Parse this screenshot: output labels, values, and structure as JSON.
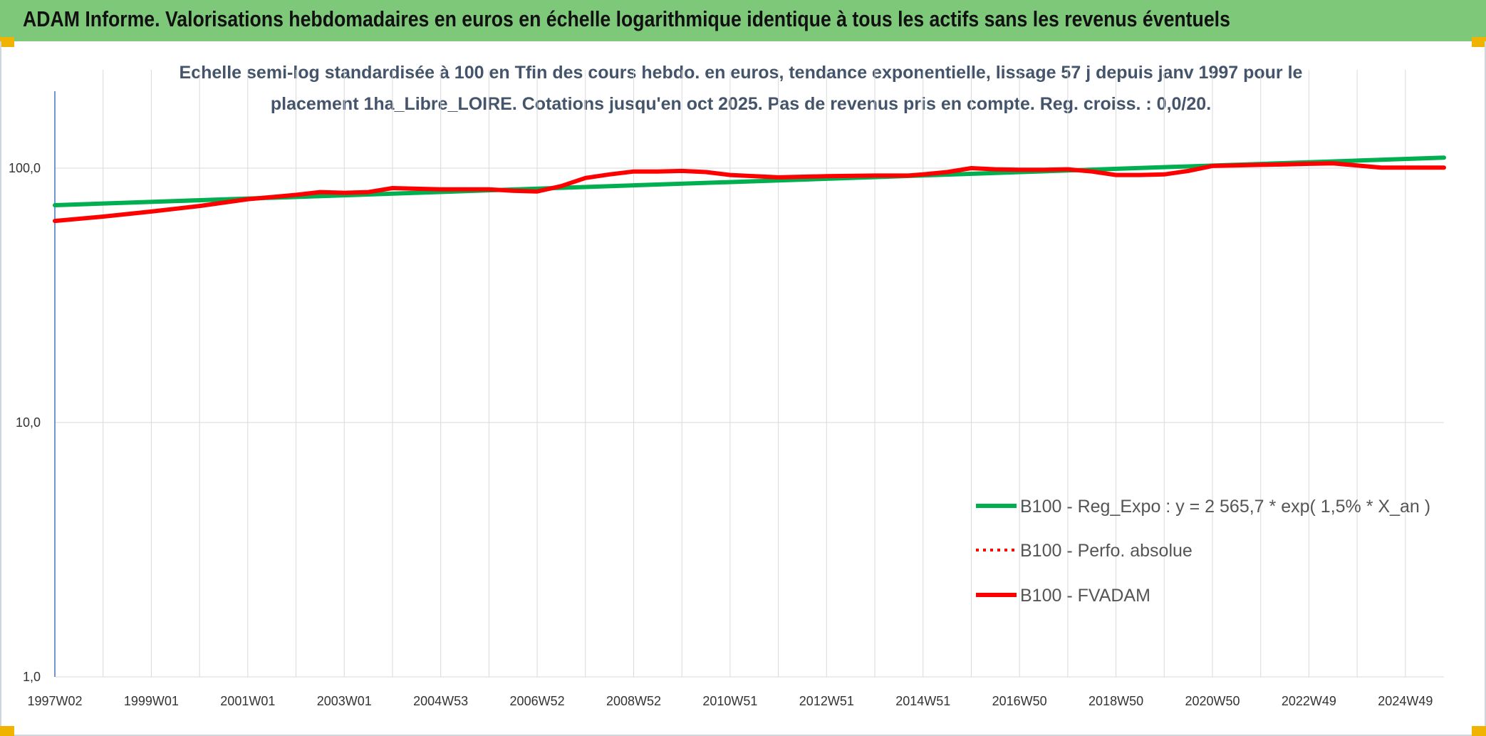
{
  "header": {
    "title": "ADAM Informe. Valorisations hebdomadaires en euros en échelle logarithmique identique à tous les actifs sans les revenus éventuels"
  },
  "colors": {
    "banner": "#7ec87a",
    "trend": "#00b050",
    "series": "#ff0000",
    "grid": "#d9d9d9",
    "axis": "#4472c4"
  },
  "chart_data": {
    "type": "line",
    "title": "Echelle semi-log standardisée à 100 en Tfin des cours hebdo. en euros, tendance exponentielle, lissage 57 j depuis janv 1997 pour le",
    "subtitle": "placement 1ha_Libre_LOIRE. Cotations jusqu'en oct 2025. Pas de revenus pris en compte. Reg. croiss. : 0,0/20.",
    "y_scale": "log",
    "ylim": [
      1,
      200
    ],
    "y_ticks": [
      1,
      10,
      100
    ],
    "y_tick_labels": [
      "1,0",
      "10,0",
      "100,0"
    ],
    "xlim": [
      1997.0,
      2025.8
    ],
    "x_ticks": [
      1997.0,
      1999.0,
      2001.0,
      2003.0,
      2005.0,
      2007.0,
      2009.0,
      2011.0,
      2013.0,
      2015.0,
      2017.0,
      2019.0,
      2021.0,
      2023.0,
      2025.0
    ],
    "x_tick_labels": [
      "1997W02",
      "1999W01",
      "2001W01",
      "2003W01",
      "2004W53",
      "2006W52",
      "2008W52",
      "2010W51",
      "2012W51",
      "2014W51",
      "2016W50",
      "2018W50",
      "2020W50",
      "2022W49",
      "2024W49"
    ],
    "grid": true,
    "legend_position": "bottom-right",
    "series": [
      {
        "name": "B100 - Reg_Expo : y = 2 565,7 * exp( 1,5% *  X_an )",
        "style": "solid",
        "x": [
          1997.0,
          2025.8
        ],
        "values": [
          71.5,
          110.0
        ]
      },
      {
        "name": "B100 - Perfo. absolue",
        "style": "dotted",
        "x": [],
        "values": []
      },
      {
        "name": "B100 - FVADAM",
        "style": "solid",
        "x": [
          1997.0,
          1998.0,
          1999.0,
          2000.0,
          2001.0,
          2002.0,
          2002.5,
          2003.0,
          2003.5,
          2004.0,
          2004.5,
          2005.0,
          2006.0,
          2006.5,
          2007.0,
          2007.5,
          2008.0,
          2008.5,
          2009.0,
          2009.5,
          2010.0,
          2010.5,
          2011.0,
          2012.0,
          2013.0,
          2014.0,
          2014.7,
          2015.0,
          2015.5,
          2016.0,
          2016.5,
          2017.0,
          2017.5,
          2018.0,
          2018.5,
          2019.0,
          2019.5,
          2020.0,
          2020.5,
          2021.0,
          2022.0,
          2022.5,
          2023.0,
          2023.5,
          2024.0,
          2024.5,
          2025.0,
          2025.8
        ],
        "values": [
          62.0,
          64.5,
          67.5,
          71.0,
          75.5,
          78.5,
          80.5,
          80.0,
          80.5,
          83.5,
          83.0,
          82.5,
          82.5,
          81.5,
          81.0,
          85.0,
          91.5,
          94.5,
          97.0,
          97.0,
          97.5,
          96.5,
          94.0,
          92.0,
          93.0,
          93.5,
          93.5,
          94.5,
          96.5,
          100.0,
          99.0,
          98.5,
          98.5,
          99.0,
          97.0,
          94.0,
          94.0,
          94.5,
          97.5,
          102.0,
          103.0,
          103.5,
          104.0,
          104.5,
          102.5,
          100.5,
          100.5,
          100.5
        ]
      }
    ]
  }
}
